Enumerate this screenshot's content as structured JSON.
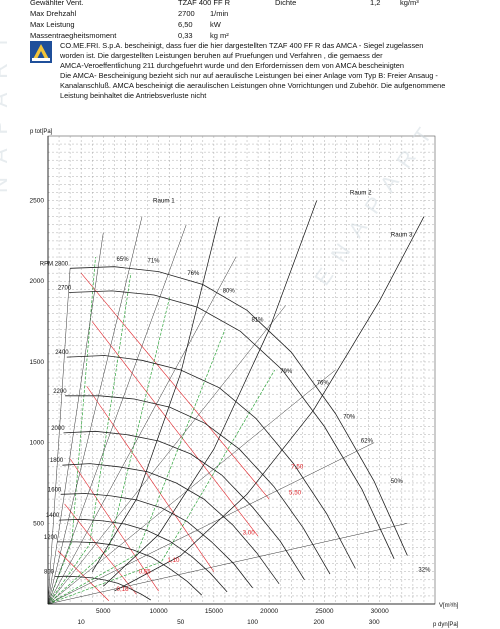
{
  "specs": {
    "rows": [
      {
        "label": "Gewählter Vent.",
        "value": "TZAF 400 FF R",
        "unit": ""
      },
      {
        "label": "Max Drehzahl",
        "value": "2700",
        "unit": "1/min"
      },
      {
        "label": "Max Leistung",
        "value": "6,50",
        "unit": "kW"
      },
      {
        "label": "Massentraegheitsmoment",
        "value": "0,33",
        "unit": "kg m²"
      }
    ],
    "density_label": "Dichte",
    "density_value": "1,2",
    "density_unit": "kg/m³"
  },
  "cert": {
    "logo_icon": "amca-seal-icon",
    "lines": [
      "CO.ME.FRI. S.p.A. bescheinigt, dass fuer die hier dargestellten TZAF 400 FF R das AMCA - Siegel zugelassen",
      "worden ist. Die dargestellten Leistungen beruhen auf Pruefungen und Verfahren , die gemaess der",
      "AMCA-Veroeffentlichung 211 durchgefuehrt wurde und den Erfordernissen dem von AMCA bescheinigten",
      "Die AMCA- Bescheinigung bezieht sich nur auf aeraulische Leistungen bei einer Anlage vom Typ B: Freier Ansaug -",
      "Kanalanschluß. AMCA bescheinigt die aeraulischen Leistungen ohne Vorrichtungen und Zubehör. Die aufgenommene",
      "Leistung beinhaltet die Antriebsverluste nicht"
    ]
  },
  "watermark": {
    "text_a": "NAPART",
    "text_b": "ENAPART"
  },
  "colors": {
    "rpm_curves": "#222222",
    "efficiency_curves": "#333333",
    "power_lines": "#e0242a",
    "dynamic_pressure_lines": "#2ea43a",
    "grid": "#8a8a8a"
  },
  "chart_data": {
    "type": "line",
    "xlabel": "V[m³/h]",
    "x2label": "p dyn[Pa]",
    "ylabel": "p tot[Pa]",
    "xlim": [
      0,
      35000
    ],
    "ylim": [
      0,
      2900
    ],
    "x_ticks": [
      "5000",
      "10000",
      "15000",
      "20000",
      "25000",
      "30000"
    ],
    "x2_ticks": [
      "10",
      "50",
      "100",
      "200",
      "300"
    ],
    "y_ticks": [
      "500",
      "1000",
      "1500",
      "2000",
      "2500"
    ],
    "y_tick_values": [
      500,
      1000,
      1500,
      2000,
      2500
    ],
    "x_tick_values": [
      5000,
      10000,
      15000,
      20000,
      25000,
      30000
    ],
    "rpm_labels": [
      "RPM 2800",
      "2700",
      "2400",
      "2200",
      "2000",
      "1800",
      "1600",
      "1400",
      "1200",
      "800"
    ],
    "efficiency_labels": [
      "65%",
      "71%",
      "76%",
      "80%",
      "81%",
      "79%",
      "76%",
      "70%",
      "62%",
      "50%",
      "32%"
    ],
    "system_curves": [
      "Raum 1",
      "Raum 2",
      "Raum 3"
    ],
    "power_labels": [
      "7,50",
      "5,50",
      "3,00",
      "1,10",
      "0,55",
      "0,18"
    ],
    "series": [
      {
        "name": "RPM 2800",
        "rpm": 2800,
        "x": [
          2000,
          6000,
          10000,
          14000,
          18000,
          22000,
          26000,
          29500,
          32500
        ],
        "y": [
          2080,
          2090,
          2060,
          1980,
          1820,
          1560,
          1180,
          760,
          300
        ]
      },
      {
        "name": "2700",
        "rpm": 2700,
        "x": [
          1900,
          5800,
          9600,
          13500,
          17400,
          21200,
          25000,
          28400,
          31300
        ],
        "y": [
          1930,
          1940,
          1915,
          1840,
          1690,
          1450,
          1100,
          710,
          280
        ]
      },
      {
        "name": "2400",
        "rpm": 2400,
        "x": [
          1700,
          5100,
          8500,
          12000,
          15500,
          18800,
          22200,
          25200,
          27800
        ],
        "y": [
          1530,
          1540,
          1510,
          1450,
          1340,
          1150,
          870,
          560,
          220
        ]
      },
      {
        "name": "2200",
        "rpm": 2200,
        "x": [
          1550,
          4700,
          7800,
          11000,
          14200,
          17300,
          20400,
          23100,
          25500
        ],
        "y": [
          1290,
          1290,
          1270,
          1220,
          1120,
          960,
          730,
          470,
          185
        ]
      },
      {
        "name": "2000",
        "rpm": 2000,
        "x": [
          1400,
          4300,
          7100,
          10000,
          12900,
          15700,
          18500,
          21000,
          23200
        ],
        "y": [
          1060,
          1070,
          1050,
          1010,
          930,
          800,
          600,
          390,
          150
        ]
      },
      {
        "name": "1800",
        "rpm": 1800,
        "x": [
          1300,
          3800,
          6400,
          9000,
          11600,
          14100,
          16700,
          18900,
          20900
        ],
        "y": [
          860,
          870,
          850,
          820,
          750,
          650,
          490,
          315,
          125
        ]
      },
      {
        "name": "1600",
        "rpm": 1600,
        "x": [
          1150,
          3400,
          5700,
          8000,
          10300,
          12600,
          14800,
          16800,
          18500
        ],
        "y": [
          680,
          685,
          670,
          645,
          595,
          510,
          385,
          250,
          100
        ]
      },
      {
        "name": "1400",
        "rpm": 1400,
        "x": [
          1000,
          3000,
          5000,
          7000,
          9000,
          11000,
          13000,
          14700,
          16200
        ],
        "y": [
          520,
          525,
          515,
          495,
          455,
          390,
          295,
          190,
          75
        ]
      },
      {
        "name": "1200",
        "rpm": 1200,
        "x": [
          850,
          2600,
          4300,
          6000,
          7700,
          9400,
          11100,
          12600,
          13900
        ],
        "y": [
          385,
          385,
          380,
          365,
          335,
          290,
          215,
          140,
          55
        ]
      },
      {
        "name": "800",
        "rpm": 800,
        "x": [
          600,
          1700,
          2850,
          4000,
          5200,
          6300,
          7400,
          8400,
          9300
        ],
        "y": [
          170,
          172,
          168,
          162,
          148,
          128,
          96,
          62,
          25
        ]
      }
    ],
    "system_curve_points": [
      {
        "name": "Raum 1",
        "x": [
          4000,
          8000,
          12000,
          15500
        ],
        "y": [
          200,
          650,
          1430,
          2400
        ]
      },
      {
        "name": "Raum 2",
        "x": [
          5000,
          10000,
          15000,
          20000,
          24300
        ],
        "y": [
          110,
          430,
          960,
          1700,
          2500
        ]
      },
      {
        "name": "Raum 3",
        "x": [
          6000,
          12000,
          18000,
          24000,
          30000,
          34000
        ],
        "y": [
          80,
          300,
          680,
          1200,
          1880,
          2400
        ]
      }
    ]
  }
}
